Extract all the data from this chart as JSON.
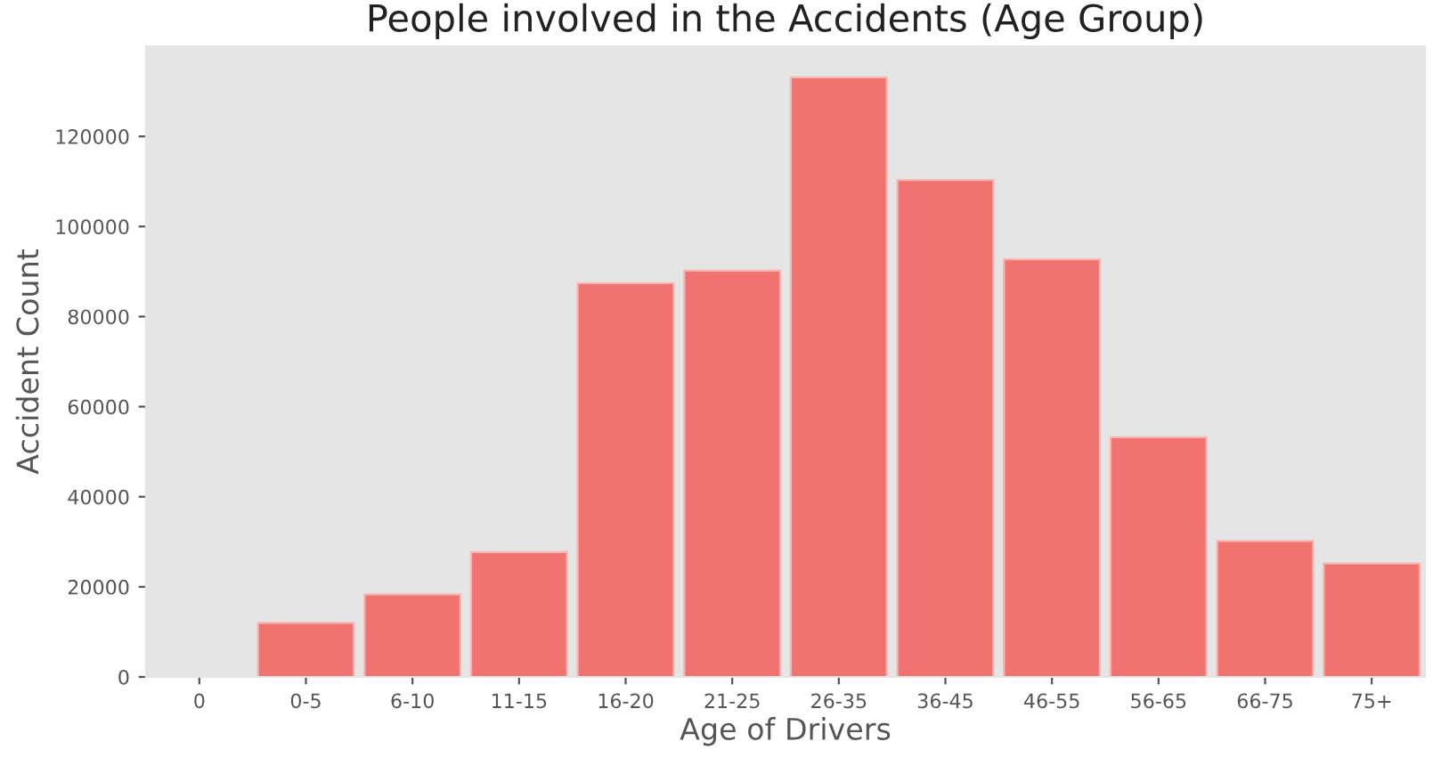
{
  "chart_data": {
    "type": "bar",
    "title": "People involved in the Accidents (Age Group)",
    "xlabel": "Age of Drivers",
    "ylabel": "Accident Count",
    "categories": [
      "0",
      "0-5",
      "6-10",
      "11-15",
      "16-20",
      "21-25",
      "26-35",
      "36-45",
      "46-55",
      "56-65",
      "66-75",
      "75+"
    ],
    "values": [
      null,
      12000,
      18300,
      27700,
      87400,
      90200,
      133100,
      110300,
      92700,
      53200,
      30200,
      25200
    ],
    "color": "#f07370",
    "ylim": [
      0,
      140000
    ],
    "yticks": [
      0,
      20000,
      40000,
      60000,
      80000,
      100000,
      120000
    ],
    "grid": false
  }
}
